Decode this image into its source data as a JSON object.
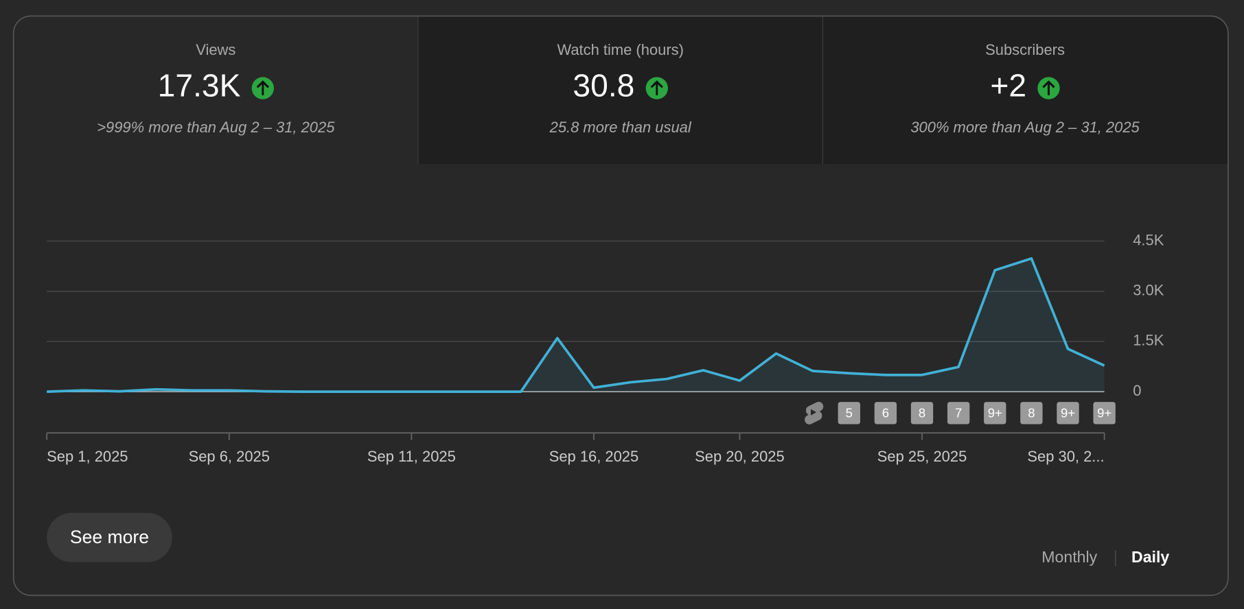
{
  "metrics": [
    {
      "title": "Views",
      "value": "17.3K",
      "comparison": ">999% more than Aug 2 – 31, 2025"
    },
    {
      "title": "Watch time (hours)",
      "value": "30.8",
      "comparison": "25.8 more than usual"
    },
    {
      "title": "Subscribers",
      "value": "+2",
      "comparison": "300% more than Aug 2 – 31, 2025"
    }
  ],
  "chart_data": {
    "type": "line",
    "categories": [
      "Sep 1, 2025",
      null,
      null,
      null,
      null,
      "Sep 6, 2025",
      null,
      null,
      null,
      null,
      "Sep 11, 2025",
      null,
      null,
      null,
      null,
      "Sep 16, 2025",
      null,
      null,
      null,
      "Sep 20, 2025",
      null,
      null,
      null,
      null,
      "Sep 25, 2025",
      null,
      null,
      null,
      null,
      "Sep 30, 2..."
    ],
    "values": [
      0,
      40,
      10,
      70,
      40,
      40,
      10,
      0,
      0,
      0,
      0,
      0,
      0,
      0,
      1600,
      120,
      280,
      380,
      640,
      330,
      1140,
      620,
      550,
      500,
      500,
      740,
      3630,
      3980,
      1280,
      780
    ],
    "color": "#41b1d6",
    "ylim": [
      0,
      4500
    ],
    "yticks": [
      0,
      {
        "value": 1500,
        "label": "1.5K"
      },
      {
        "value": 3000,
        "label": "3.0K"
      },
      {
        "value": 4500,
        "label": "4.5K"
      }
    ],
    "grid": true,
    "upload_badges": [
      "5",
      "6",
      "8",
      "7",
      "9+",
      "8",
      "9+",
      "9+"
    ]
  },
  "buttons": {
    "see_more": "See more",
    "monthly": "Monthly",
    "daily": "Daily"
  }
}
